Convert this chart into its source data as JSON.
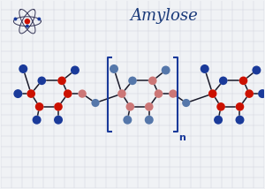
{
  "title": "Amylose",
  "title_color": "#1a3a7a",
  "title_fontsize": 13,
  "bg_color": "#f0f2f5",
  "grid_color": "#d0d4de",
  "red_color": "#cc1100",
  "blue_color": "#1a3a9a",
  "pink_color": "#cc7777",
  "light_blue_color": "#5577aa",
  "bracket_color": "#1a3a9a",
  "bond_color": "#1a1a2a",
  "n_label_fontsize": 8
}
